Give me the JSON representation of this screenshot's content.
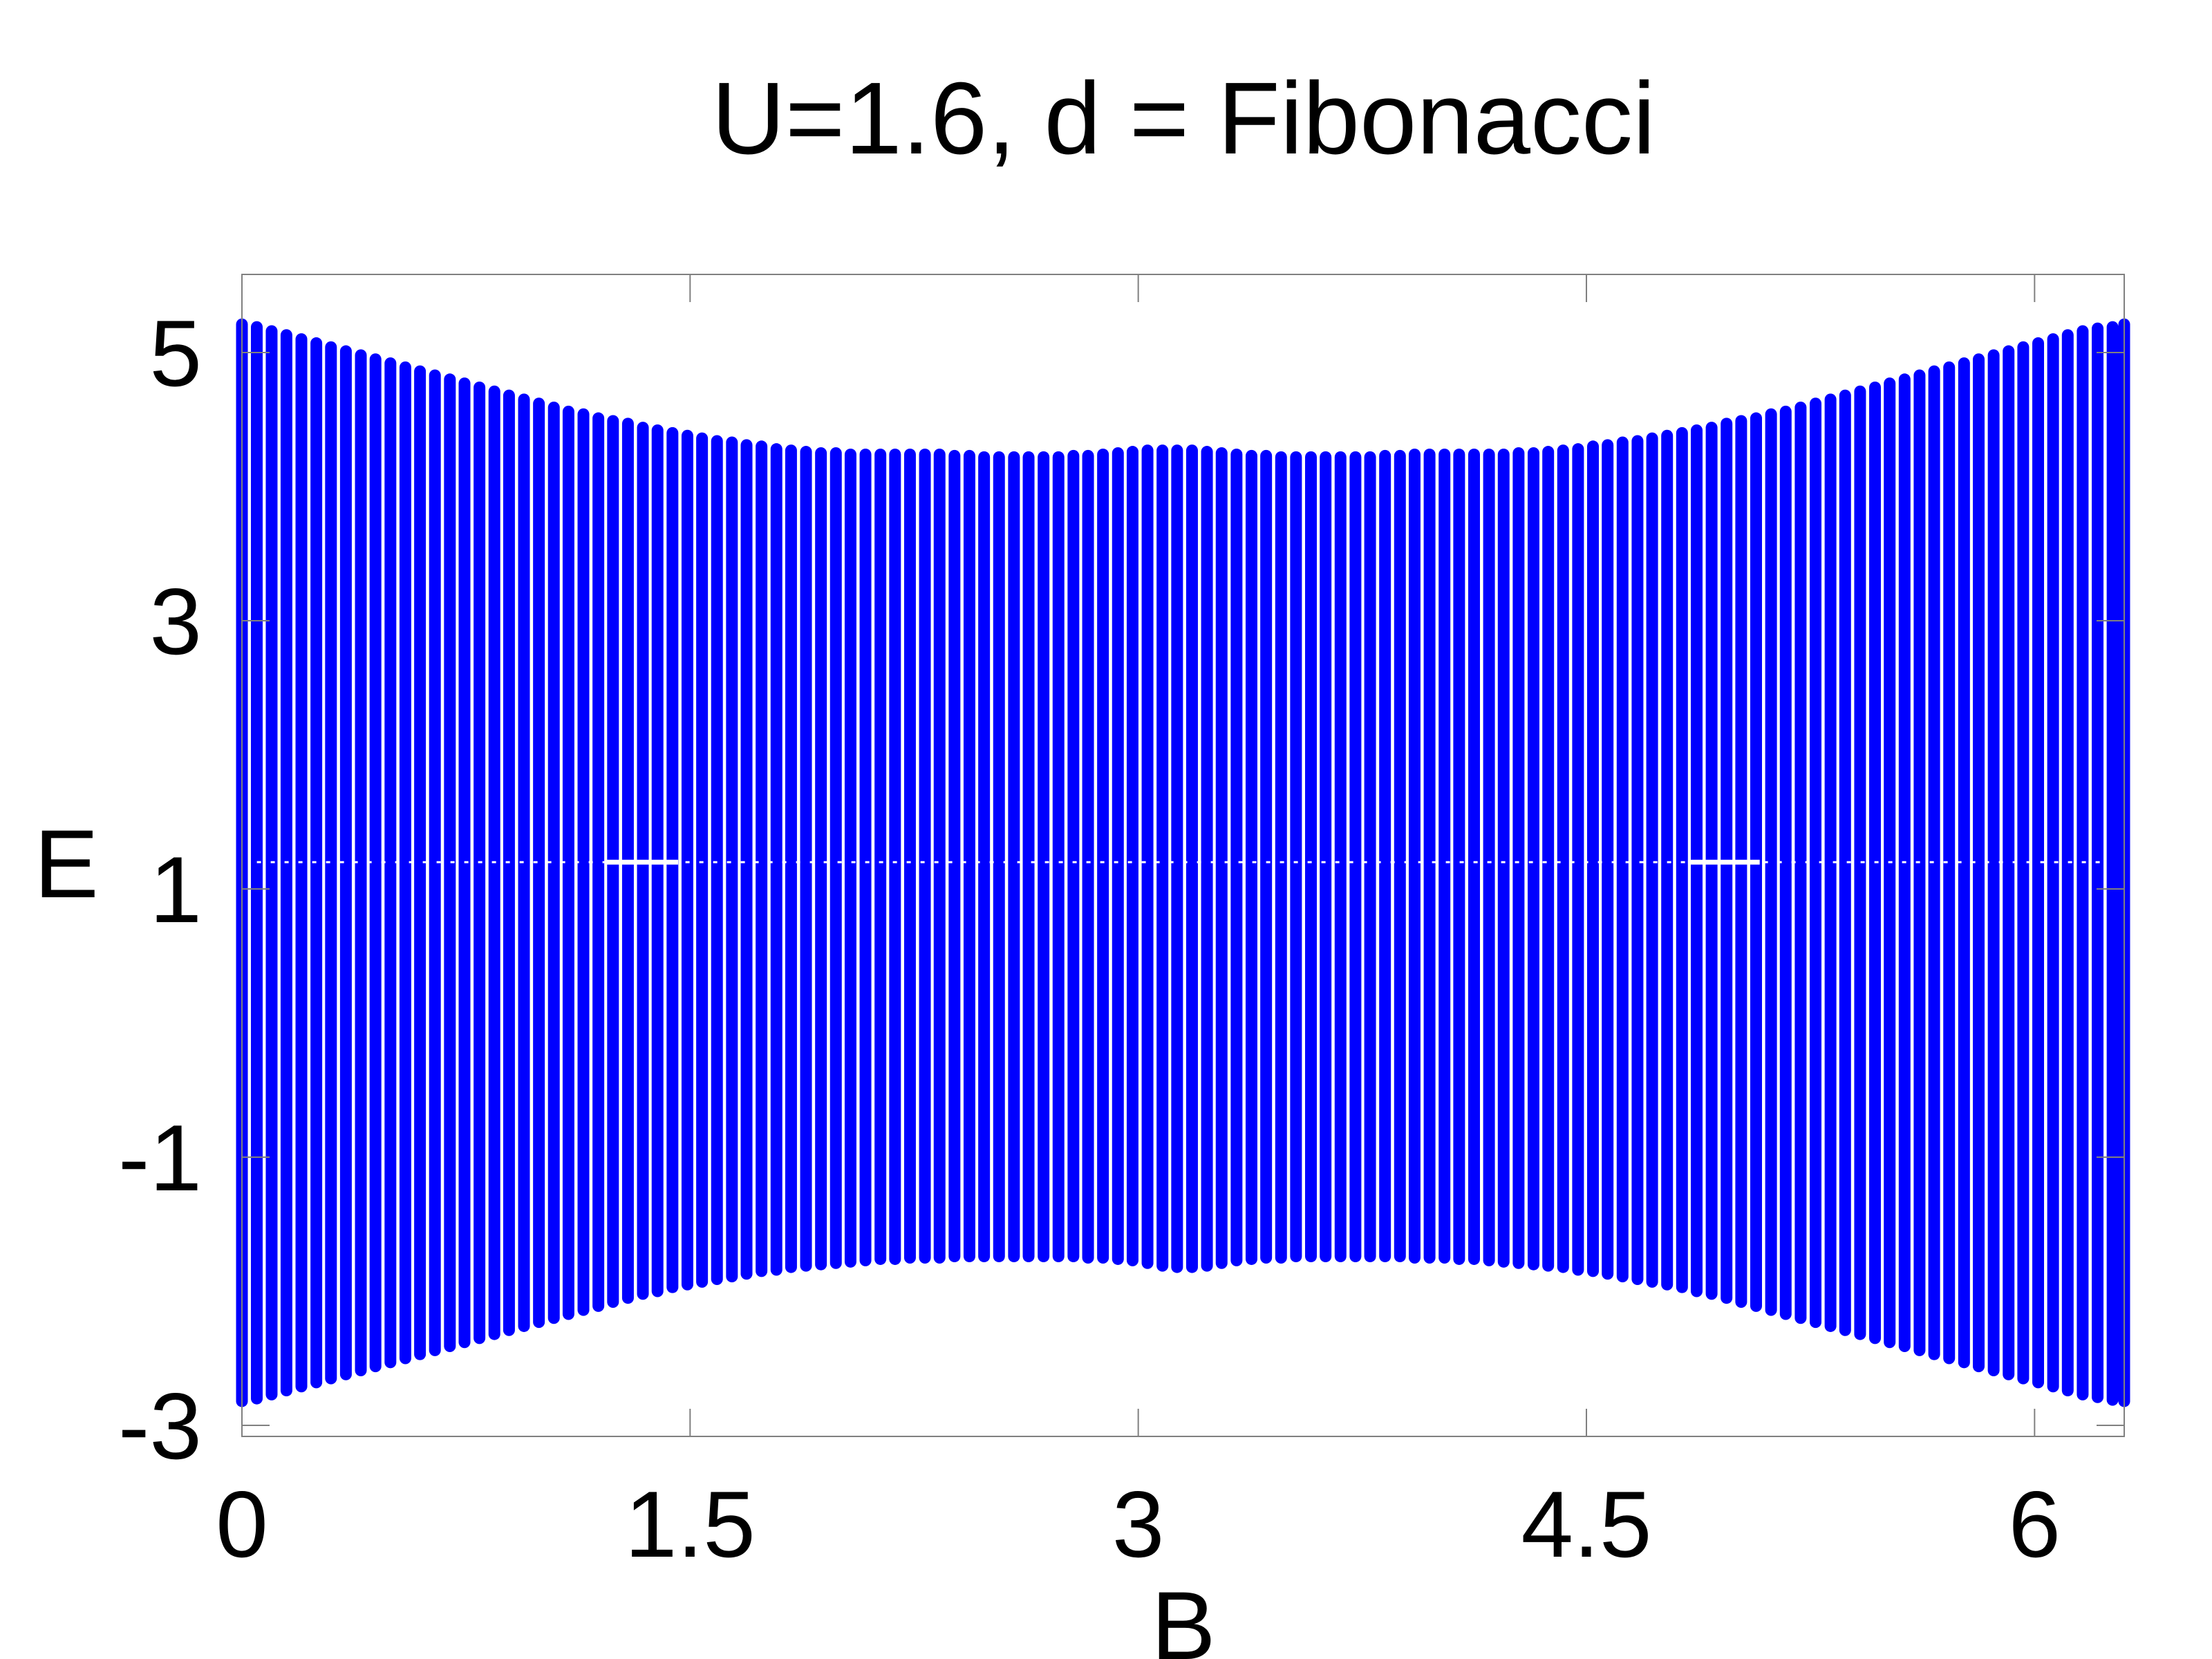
{
  "chart_data": {
    "type": "scatter",
    "title": "U=1.6, d = Fibonacci",
    "xlabel": "B",
    "ylabel": "E",
    "xlim": [
      0,
      6.3
    ],
    "ylim": [
      -3,
      5.5
    ],
    "xticks": [
      0,
      1.5,
      3,
      4.5,
      6
    ],
    "xtick_labels": [
      "0",
      "1.5",
      "3",
      "4.5",
      "6"
    ],
    "yticks": [
      -3,
      -1,
      1,
      3,
      5
    ],
    "ytick_labels": [
      "-3",
      "-1",
      "1",
      "3",
      "5"
    ],
    "grid": false,
    "legend": "none",
    "marker_color": "#0000ff",
    "series": [
      {
        "B": [
          0,
          0.0497,
          0.0994,
          0.149,
          0.199,
          0.249,
          0.298,
          0.348,
          0.398,
          0.447,
          0.497,
          0.547,
          0.596,
          0.646,
          0.696,
          0.745,
          0.795,
          0.845,
          0.894,
          0.944,
          0.994,
          1.044,
          1.093,
          1.143,
          1.193,
          1.242,
          1.292,
          1.342,
          1.391,
          1.441,
          1.491,
          1.54,
          1.59,
          1.64,
          1.689,
          1.739,
          1.789,
          1.838,
          1.888,
          1.938,
          1.988,
          2.037,
          2.087,
          2.137,
          2.186,
          2.236,
          2.286,
          2.335,
          2.385,
          2.435,
          2.484,
          2.534,
          2.584,
          2.633,
          2.683,
          2.733,
          2.783,
          2.832,
          2.882,
          2.932,
          2.981,
          3.031,
          3.081,
          3.13,
          3.18,
          3.23,
          3.279,
          3.329,
          3.379,
          3.428,
          3.478,
          3.528,
          3.578,
          3.627,
          3.677,
          3.727,
          3.776,
          3.826,
          3.876,
          3.925,
          3.975,
          4.025,
          4.074,
          4.124,
          4.174,
          4.223,
          4.273,
          4.323,
          4.372,
          4.422,
          4.472,
          4.522,
          4.571,
          4.621,
          4.671,
          4.72,
          4.77,
          4.82,
          4.869,
          4.919,
          4.969,
          5.018,
          5.068,
          5.118,
          5.167,
          5.217,
          5.267,
          5.317,
          5.366,
          5.416,
          5.466,
          5.515,
          5.565,
          5.615,
          5.664,
          5.714,
          5.764,
          5.813,
          5.863,
          5.913,
          5.962,
          6.012,
          6.062,
          6.111,
          6.161,
          6.211,
          6.261,
          6.3
        ],
        "E_max": [
          5.21,
          5.19,
          5.16,
          5.13,
          5.1,
          5.07,
          5.04,
          5.01,
          4.98,
          4.95,
          4.92,
          4.89,
          4.86,
          4.83,
          4.8,
          4.77,
          4.74,
          4.71,
          4.68,
          4.65,
          4.62,
          4.59,
          4.56,
          4.54,
          4.51,
          4.49,
          4.47,
          4.44,
          4.42,
          4.4,
          4.38,
          4.36,
          4.34,
          4.33,
          4.31,
          4.3,
          4.28,
          4.27,
          4.26,
          4.25,
          4.25,
          4.24,
          4.24,
          4.24,
          4.24,
          4.24,
          4.24,
          4.24,
          4.23,
          4.23,
          4.22,
          4.22,
          4.22,
          4.22,
          4.22,
          4.22,
          4.23,
          4.23,
          4.24,
          4.25,
          4.26,
          4.27,
          4.27,
          4.27,
          4.27,
          4.26,
          4.25,
          4.24,
          4.23,
          4.23,
          4.22,
          4.22,
          4.22,
          4.22,
          4.22,
          4.22,
          4.22,
          4.23,
          4.23,
          4.24,
          4.24,
          4.24,
          4.24,
          4.24,
          4.24,
          4.24,
          4.25,
          4.25,
          4.26,
          4.27,
          4.28,
          4.3,
          4.31,
          4.33,
          4.34,
          4.36,
          4.38,
          4.4,
          4.42,
          4.44,
          4.47,
          4.49,
          4.51,
          4.54,
          4.56,
          4.59,
          4.62,
          4.65,
          4.68,
          4.71,
          4.74,
          4.77,
          4.8,
          4.83,
          4.86,
          4.89,
          4.92,
          4.95,
          4.98,
          5.01,
          5.04,
          5.07,
          5.1,
          5.13,
          5.16,
          5.18,
          5.19,
          5.21
        ],
        "E_min": [
          -2.82,
          -2.8,
          -2.77,
          -2.74,
          -2.71,
          -2.68,
          -2.65,
          -2.62,
          -2.59,
          -2.56,
          -2.53,
          -2.5,
          -2.47,
          -2.44,
          -2.41,
          -2.38,
          -2.35,
          -2.32,
          -2.29,
          -2.26,
          -2.23,
          -2.2,
          -2.17,
          -2.14,
          -2.11,
          -2.08,
          -2.05,
          -2.02,
          -2.0,
          -1.97,
          -1.95,
          -1.93,
          -1.91,
          -1.89,
          -1.87,
          -1.85,
          -1.84,
          -1.82,
          -1.81,
          -1.8,
          -1.79,
          -1.78,
          -1.77,
          -1.76,
          -1.76,
          -1.75,
          -1.75,
          -1.75,
          -1.74,
          -1.74,
          -1.74,
          -1.74,
          -1.74,
          -1.74,
          -1.74,
          -1.74,
          -1.74,
          -1.75,
          -1.75,
          -1.76,
          -1.77,
          -1.79,
          -1.81,
          -1.82,
          -1.82,
          -1.81,
          -1.79,
          -1.77,
          -1.76,
          -1.75,
          -1.75,
          -1.74,
          -1.74,
          -1.74,
          -1.74,
          -1.74,
          -1.74,
          -1.74,
          -1.74,
          -1.75,
          -1.75,
          -1.75,
          -1.76,
          -1.76,
          -1.77,
          -1.78,
          -1.79,
          -1.8,
          -1.81,
          -1.82,
          -1.84,
          -1.85,
          -1.87,
          -1.89,
          -1.91,
          -1.93,
          -1.95,
          -1.97,
          -2.0,
          -2.02,
          -2.05,
          -2.08,
          -2.11,
          -2.14,
          -2.17,
          -2.2,
          -2.23,
          -2.26,
          -2.29,
          -2.32,
          -2.35,
          -2.38,
          -2.41,
          -2.44,
          -2.47,
          -2.5,
          -2.53,
          -2.56,
          -2.59,
          -2.62,
          -2.65,
          -2.68,
          -2.71,
          -2.74,
          -2.77,
          -2.79,
          -2.81,
          -2.82
        ]
      }
    ]
  }
}
